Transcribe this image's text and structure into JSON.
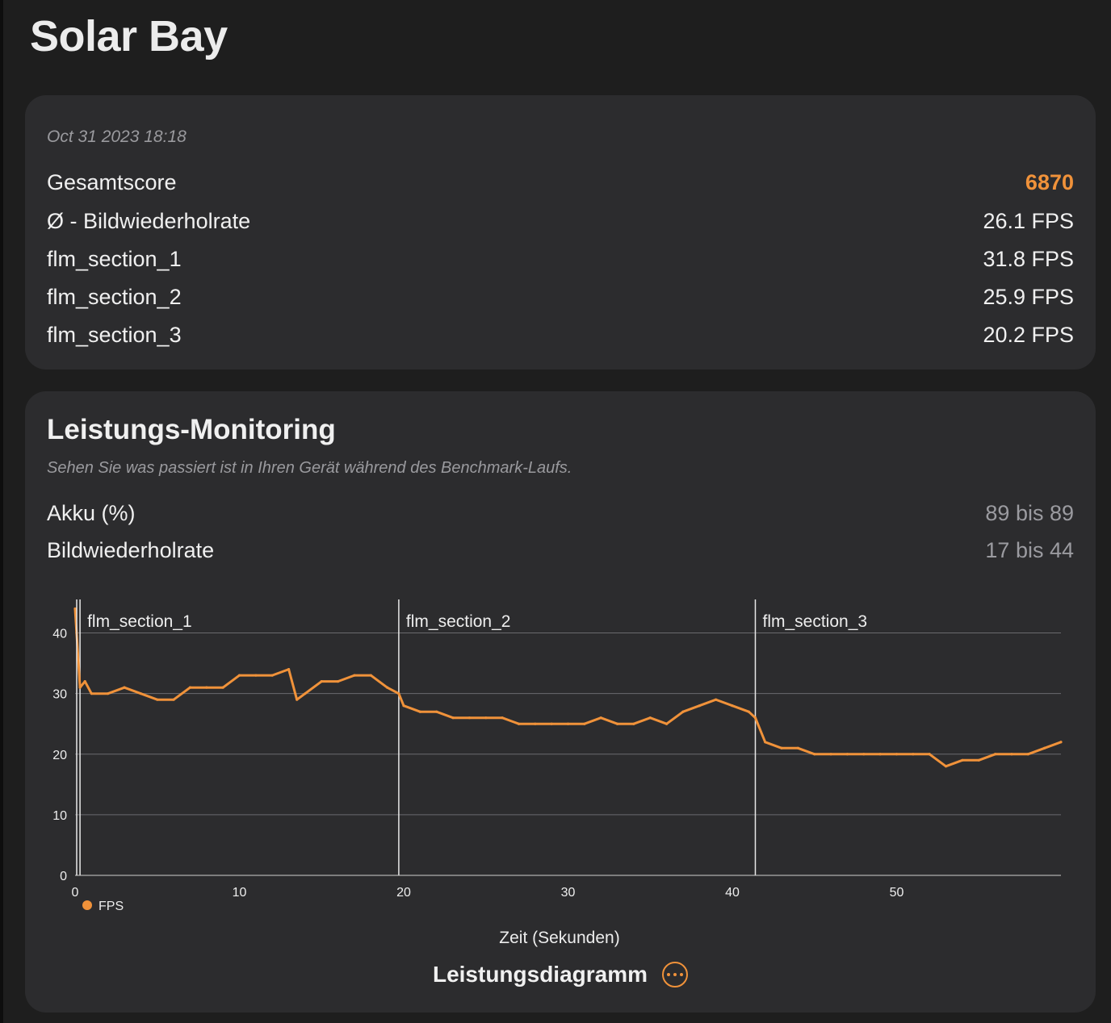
{
  "title": "Solar Bay",
  "summary": {
    "timestamp": "Oct 31 2023 18:18",
    "rows": [
      {
        "label": "Gesamtscore",
        "value": "6870"
      },
      {
        "label": "Ø - Bildwiederholrate",
        "value": "26.1 FPS"
      },
      {
        "label": "flm_section_1",
        "value": "31.8 FPS"
      },
      {
        "label": "flm_section_2",
        "value": "25.9 FPS"
      },
      {
        "label": "flm_section_3",
        "value": "20.2 FPS"
      }
    ]
  },
  "monitoring": {
    "title": "Leistungs-Monitoring",
    "subtitle": "Sehen Sie was passiert ist in Ihren Gerät während des Benchmark-Laufs.",
    "metrics": [
      {
        "label": "Akku (%)",
        "value": "89 bis 89"
      },
      {
        "label": "Bildwiederholrate",
        "value": "17 bis 44"
      }
    ],
    "footer_label": "Leistungsdiagramm"
  },
  "colors": {
    "accent": "#f0923a",
    "card": "#2c2c2e",
    "background": "#1e1e1e"
  },
  "chart_data": {
    "type": "line",
    "xlabel": "Zeit (Sekunden)",
    "ylabel": "",
    "xlim": [
      0,
      60
    ],
    "ylim": [
      0,
      45
    ],
    "x_ticks": [
      0,
      10,
      20,
      30,
      40,
      50
    ],
    "y_ticks": [
      0,
      10,
      20,
      30,
      40
    ],
    "grid": true,
    "legend_position": "bottom-left",
    "sections": [
      {
        "label": "flm_section_1",
        "x": 0.3
      },
      {
        "label": "flm_section_2",
        "x": 19.7
      },
      {
        "label": "flm_section_3",
        "x": 41.4
      }
    ],
    "series": [
      {
        "name": "FPS",
        "x": [
          0,
          0.3,
          0.6,
          1,
          2,
          3,
          4,
          5,
          6,
          7,
          8,
          9,
          10,
          11,
          12,
          13,
          13.5,
          14,
          15,
          16,
          17,
          18,
          19,
          19.7,
          20,
          21,
          22,
          23,
          24,
          25,
          26,
          27,
          28,
          29,
          30,
          31,
          32,
          33,
          34,
          35,
          36,
          37,
          38,
          39,
          40,
          41,
          41.4,
          42,
          43,
          44,
          45,
          46,
          47,
          48,
          49,
          50,
          51,
          52,
          53,
          54,
          55,
          56,
          57,
          58,
          59,
          60
        ],
        "values": [
          44,
          31,
          32,
          30,
          30,
          31,
          30,
          29,
          29,
          31,
          31,
          31,
          33,
          33,
          33,
          34,
          29,
          30,
          32,
          32,
          33,
          33,
          31,
          30,
          28,
          27,
          27,
          26,
          26,
          26,
          26,
          25,
          25,
          25,
          25,
          25,
          26,
          25,
          25,
          26,
          25,
          27,
          28,
          29,
          28,
          27,
          26,
          22,
          21,
          21,
          20,
          20,
          20,
          20,
          20,
          20,
          20,
          20,
          18,
          19,
          19,
          20,
          20,
          20,
          21,
          22
        ]
      }
    ]
  }
}
